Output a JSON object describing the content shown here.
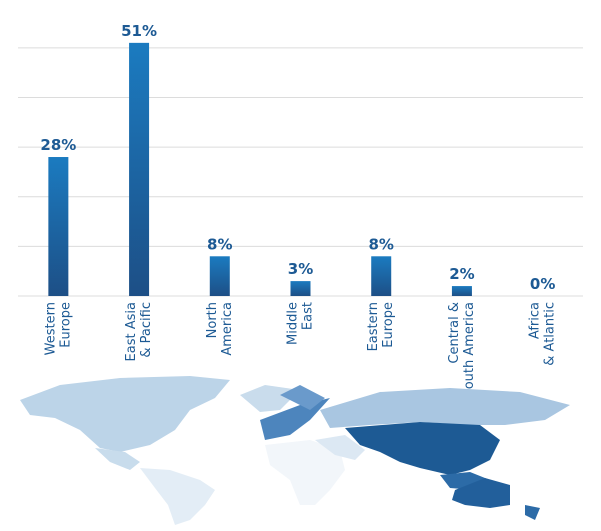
{
  "chart_data": {
    "type": "bar",
    "categories": [
      [
        "Western",
        "Europe"
      ],
      [
        "East Asia",
        "& Pacific"
      ],
      [
        "North",
        "America"
      ],
      [
        "Middle",
        "East"
      ],
      [
        "Eastern",
        "Europe"
      ],
      [
        "Central &",
        "South America"
      ],
      [
        "Africa",
        "& Atlantic"
      ]
    ],
    "values": [
      28,
      51,
      8,
      3,
      8,
      2,
      0
    ],
    "value_labels": [
      "28%",
      "51%",
      "8%",
      "3%",
      "8%",
      "2%",
      "0%"
    ],
    "color": "#1b7bc0",
    "ylim": [
      0,
      55
    ],
    "yticks": [
      0,
      10,
      20,
      30,
      40,
      50
    ],
    "grid": true
  }
}
